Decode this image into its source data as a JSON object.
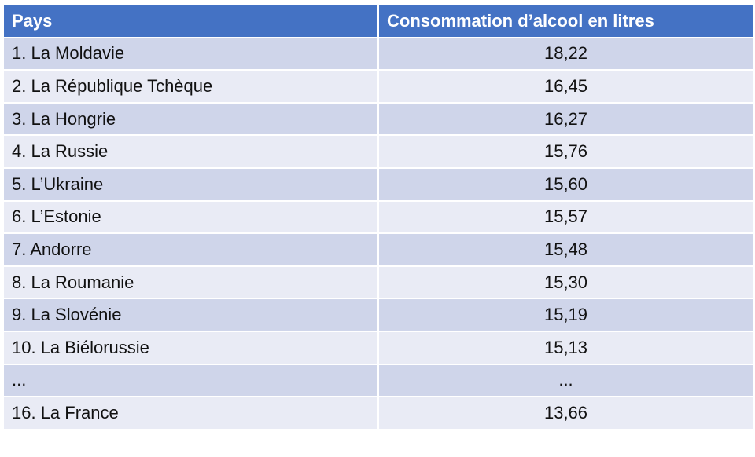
{
  "table": {
    "header": [
      "Pays",
      "Consommation d’alcool en litres"
    ],
    "rows": [
      [
        "1. La Moldavie",
        "18,22"
      ],
      [
        "2. La République Tchèque",
        "16,45"
      ],
      [
        "3. La Hongrie",
        "16,27"
      ],
      [
        "4. La Russie",
        "15,76"
      ],
      [
        "5. L’Ukraine",
        "15,60"
      ],
      [
        "6. L’Estonie",
        "15,57"
      ],
      [
        "7. Andorre",
        "15,48"
      ],
      [
        "8. La Roumanie",
        "15,30"
      ],
      [
        "9. La Slovénie",
        "15,19"
      ],
      [
        "10. La Biélorussie",
        "15,13"
      ],
      [
        "...",
        "..."
      ],
      [
        "16. La France",
        "13,66"
      ]
    ]
  }
}
